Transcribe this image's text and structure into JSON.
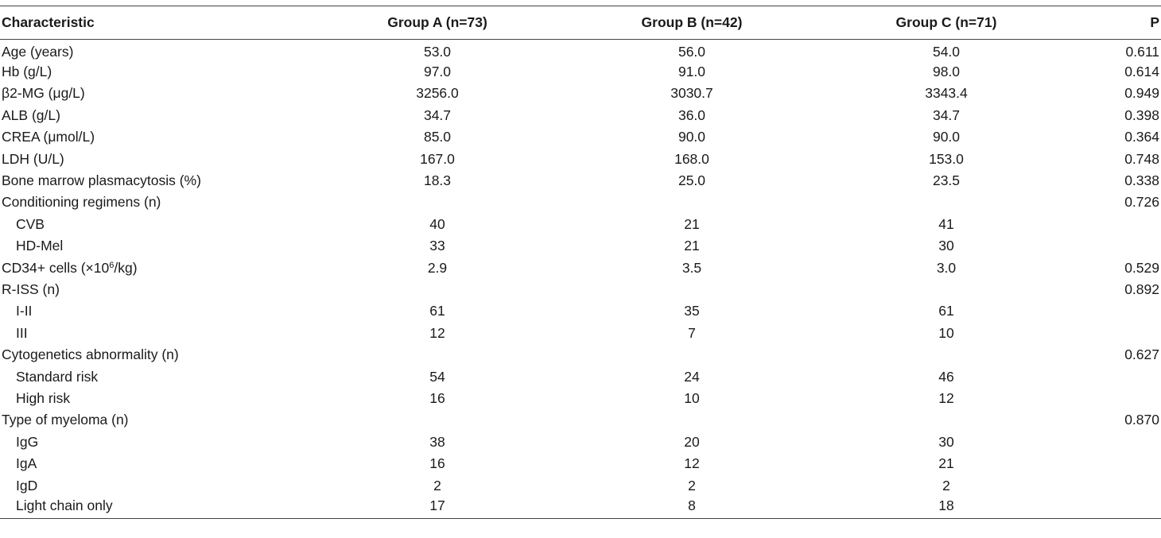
{
  "table": {
    "headers": {
      "characteristic": "Characteristic",
      "group_a": "Group A (n=73)",
      "group_b": "Group B (n=42)",
      "group_c": "Group C (n=71)",
      "p": "P"
    },
    "rows": [
      {
        "label": "Age (years)",
        "a": "53.0",
        "b": "56.0",
        "c": "54.0",
        "p": "0.611"
      },
      {
        "label": "Hb (g/L)",
        "a": "97.0",
        "b": "91.0",
        "c": "98.0",
        "p": "0.614"
      },
      {
        "label": "β2-MG (μg/L)",
        "a": "3256.0",
        "b": "3030.7",
        "c": "3343.4",
        "p": "0.949"
      },
      {
        "label": "ALB (g/L)",
        "a": "34.7",
        "b": "36.0",
        "c": "34.7",
        "p": "0.398"
      },
      {
        "label": "CREA (μmol/L)",
        "a": "85.0",
        "b": "90.0",
        "c": "90.0",
        "p": "0.364"
      },
      {
        "label": "LDH (U/L)",
        "a": "167.0",
        "b": "168.0",
        "c": "153.0",
        "p": "0.748"
      },
      {
        "label": "Bone marrow plasmacytosis (%)",
        "a": "18.3",
        "b": "25.0",
        "c": "23.5",
        "p": "0.338"
      },
      {
        "label": "Conditioning regimens (n)",
        "a": "",
        "b": "",
        "c": "",
        "p": "0.726"
      },
      {
        "label": "CVB",
        "a": "40",
        "b": "21",
        "c": "41",
        "p": ""
      },
      {
        "label": "HD-Mel",
        "a": "33",
        "b": "21",
        "c": "30",
        "p": ""
      },
      {
        "label_pre": "CD34+ cells (×10",
        "label_sup": "6",
        "label_post": "/kg)",
        "a": "2.9",
        "b": "3.5",
        "c": "3.0",
        "p": "0.529"
      },
      {
        "label": "R-ISS (n)",
        "a": "",
        "b": "",
        "c": "",
        "p": "0.892"
      },
      {
        "label": "I-II",
        "a": "61",
        "b": "35",
        "c": "61",
        "p": ""
      },
      {
        "label": "III",
        "a": "12",
        "b": "7",
        "c": "10",
        "p": ""
      },
      {
        "label": "Cytogenetics abnormality (n)",
        "a": "",
        "b": "",
        "c": "",
        "p": "0.627"
      },
      {
        "label": "Standard risk",
        "a": "54",
        "b": "24",
        "c": "46",
        "p": ""
      },
      {
        "label": "High risk",
        "a": "16",
        "b": "10",
        "c": "12",
        "p": ""
      },
      {
        "label": "Type of myeloma (n)",
        "a": "",
        "b": "",
        "c": "",
        "p": "0.870"
      },
      {
        "label": "IgG",
        "a": "38",
        "b": "20",
        "c": "30",
        "p": ""
      },
      {
        "label": "IgA",
        "a": "16",
        "b": "12",
        "c": "21",
        "p": ""
      },
      {
        "label": "IgD",
        "a": "2",
        "b": "2",
        "c": "2",
        "p": ""
      },
      {
        "label": "Light chain only",
        "a": "17",
        "b": "8",
        "c": "18",
        "p": ""
      }
    ]
  }
}
